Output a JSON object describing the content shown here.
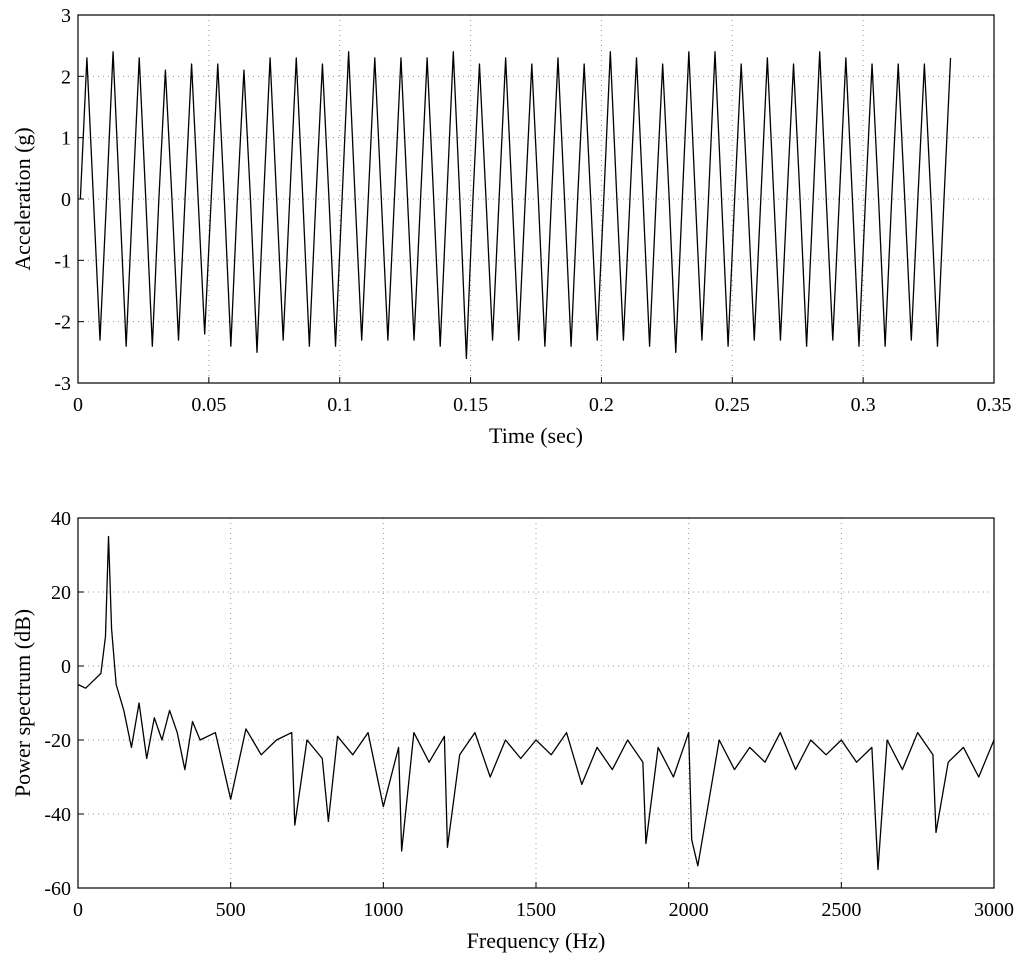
{
  "chart_data": [
    {
      "type": "line",
      "xlabel": "Time (sec)",
      "ylabel": "Acceleration (g)",
      "color": "#000000",
      "grid": true,
      "xlim": [
        0,
        0.35
      ],
      "ylim": [
        -3,
        3
      ],
      "xticks": [
        0,
        0.05,
        0.1,
        0.15,
        0.2,
        0.25,
        0.3,
        0.35
      ],
      "yticks": [
        -3,
        -2,
        -1,
        0,
        1,
        2,
        3
      ],
      "x": [
        0.0009,
        0.0034,
        0.0059,
        0.0084,
        0.0109,
        0.0134,
        0.0159,
        0.0184,
        0.0209,
        0.0234,
        0.0259,
        0.0284,
        0.0309,
        0.0334,
        0.0359,
        0.0384,
        0.0409,
        0.0434,
        0.0459,
        0.0484,
        0.0509,
        0.0534,
        0.0559,
        0.0584,
        0.0609,
        0.0634,
        0.0659,
        0.0684,
        0.0709,
        0.0734,
        0.0759,
        0.0784,
        0.0809,
        0.0834,
        0.0859,
        0.0884,
        0.0909,
        0.0934,
        0.0959,
        0.0984,
        0.1009,
        0.1034,
        0.1059,
        0.1084,
        0.1109,
        0.1134,
        0.1159,
        0.1184,
        0.1209,
        0.1234,
        0.1259,
        0.1284,
        0.1309,
        0.1334,
        0.1359,
        0.1384,
        0.1409,
        0.1434,
        0.1459,
        0.1484,
        0.1509,
        0.1534,
        0.1559,
        0.1584,
        0.1609,
        0.1634,
        0.1659,
        0.1684,
        0.1709,
        0.1734,
        0.1759,
        0.1784,
        0.1809,
        0.1834,
        0.1859,
        0.1884,
        0.1909,
        0.1934,
        0.1959,
        0.1984,
        0.2009,
        0.2034,
        0.2059,
        0.2084,
        0.2109,
        0.2134,
        0.2159,
        0.2184,
        0.2209,
        0.2234,
        0.2259,
        0.2284,
        0.2309,
        0.2334,
        0.2359,
        0.2384,
        0.2409,
        0.2434,
        0.2459,
        0.2484,
        0.2509,
        0.2534,
        0.2559,
        0.2584,
        0.2609,
        0.2634,
        0.2659,
        0.2684,
        0.2709,
        0.2734,
        0.2759,
        0.2784,
        0.2809,
        0.2834,
        0.2859,
        0.2884,
        0.2909,
        0.2934,
        0.2959,
        0.2984,
        0.3009,
        0.3034,
        0.3059,
        0.3084,
        0.3109,
        0.3134,
        0.3159,
        0.3184,
        0.3209,
        0.3234,
        0.3259,
        0.3284,
        0.3309,
        0.3334
      ],
      "values": [
        0,
        2.3,
        0,
        -2.3,
        0,
        2.4,
        0,
        -2.4,
        0,
        2.3,
        0,
        -2.4,
        0,
        2.1,
        0,
        -2.3,
        0,
        2.2,
        0,
        -2.2,
        0,
        2.2,
        0,
        -2.4,
        0,
        2.1,
        0,
        -2.5,
        0,
        2.3,
        0,
        -2.3,
        0,
        2.3,
        0,
        -2.4,
        0,
        2.2,
        0,
        -2.4,
        0,
        2.4,
        0,
        -2.3,
        0,
        2.3,
        0,
        -2.3,
        0,
        2.3,
        0,
        -2.3,
        0,
        2.3,
        0,
        -2.4,
        0,
        2.4,
        0,
        -2.6,
        0,
        2.2,
        0,
        -2.3,
        0,
        2.3,
        0,
        -2.3,
        0,
        2.2,
        0,
        -2.4,
        0,
        2.3,
        0,
        -2.4,
        0,
        2.2,
        0,
        -2.3,
        0,
        2.4,
        0,
        -2.3,
        0,
        2.3,
        0,
        -2.4,
        0,
        2.2,
        0,
        -2.5,
        0,
        2.4,
        0,
        -2.3,
        0,
        2.4,
        0,
        -2.4,
        0,
        2.2,
        0,
        -2.3,
        0,
        2.3,
        0,
        -2.3,
        0,
        2.2,
        0,
        -2.4,
        0,
        2.4,
        0,
        -2.3,
        0,
        2.3,
        0,
        -2.4,
        0,
        2.2,
        0,
        -2.4,
        0,
        2.2,
        0,
        -2.3,
        0,
        2.2,
        0,
        -2.4,
        0,
        2.3
      ]
    },
    {
      "type": "line",
      "xlabel": "Frequency (Hz)",
      "ylabel": "Power spectrum (dB)",
      "color": "#000000",
      "grid": true,
      "xlim": [
        0,
        3000
      ],
      "ylim": [
        -60,
        40
      ],
      "xticks": [
        0,
        500,
        1000,
        1500,
        2000,
        2500,
        3000
      ],
      "yticks": [
        -60,
        -40,
        -20,
        0,
        20,
        40
      ],
      "x": [
        0,
        25,
        50,
        75,
        90,
        100,
        110,
        125,
        150,
        175,
        200,
        225,
        250,
        275,
        300,
        325,
        350,
        375,
        400,
        450,
        500,
        550,
        600,
        650,
        700,
        710,
        750,
        800,
        820,
        850,
        900,
        950,
        1000,
        1050,
        1060,
        1100,
        1150,
        1200,
        1210,
        1250,
        1300,
        1350,
        1400,
        1450,
        1500,
        1550,
        1600,
        1650,
        1700,
        1750,
        1800,
        1850,
        1860,
        1900,
        1950,
        2000,
        2010,
        2030,
        2100,
        2150,
        2200,
        2250,
        2300,
        2350,
        2400,
        2450,
        2500,
        2550,
        2600,
        2620,
        2650,
        2700,
        2750,
        2800,
        2810,
        2850,
        2900,
        2950,
        3000
      ],
      "values": [
        -5,
        -6,
        -4,
        -2,
        8,
        35,
        10,
        -5,
        -12,
        -22,
        -10,
        -25,
        -14,
        -20,
        -12,
        -18,
        -28,
        -15,
        -20,
        -18,
        -36,
        -17,
        -24,
        -20,
        -18,
        -43,
        -20,
        -25,
        -42,
        -19,
        -24,
        -18,
        -38,
        -22,
        -50,
        -18,
        -26,
        -19,
        -49,
        -24,
        -18,
        -30,
        -20,
        -25,
        -20,
        -24,
        -18,
        -32,
        -22,
        -28,
        -20,
        -26,
        -48,
        -22,
        -30,
        -18,
        -47,
        -54,
        -20,
        -28,
        -22,
        -26,
        -18,
        -28,
        -20,
        -24,
        -20,
        -26,
        -22,
        -55,
        -20,
        -28,
        -18,
        -24,
        -45,
        -26,
        -22,
        -30,
        -20
      ]
    }
  ]
}
